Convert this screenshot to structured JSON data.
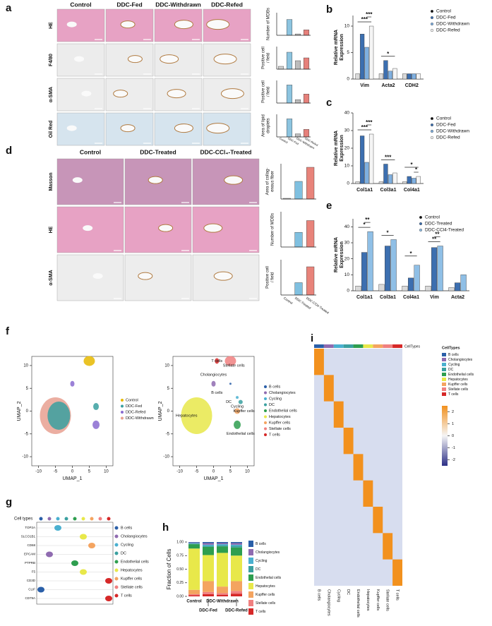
{
  "panel_a": {
    "letter": "a",
    "columns": [
      "Control",
      "DDC-Fed",
      "DDC-Withdrawn",
      "DDC-Refed"
    ],
    "rows": [
      "HE",
      "F4/80",
      "α-SMA",
      "Oil Red"
    ],
    "bar_colors": [
      "#cfcfcf",
      "#8cc4e0",
      "#bcbcbc",
      "#e6807a"
    ],
    "charts": [
      {
        "y_label": [
          "Number of MDBs"
        ],
        "values": [
          0,
          3.5,
          0.3,
          1.2
        ],
        "ylim": [
          0,
          5
        ]
      },
      {
        "y_label": [
          "Positive cell",
          "/ field"
        ],
        "values": [
          1,
          6,
          3,
          4
        ],
        "ylim": [
          0,
          8
        ]
      },
      {
        "y_label": [
          "Positive cell",
          "/ field"
        ],
        "values": [
          0,
          8,
          1.5,
          4
        ],
        "ylim": [
          0,
          10
        ]
      },
      {
        "y_label": [
          "Area of lipid",
          "droplets"
        ],
        "values": [
          0,
          12,
          2,
          5
        ],
        "ylim": [
          0,
          15
        ]
      }
    ]
  },
  "panel_b": {
    "letter": "b",
    "y_label": [
      "Relative mRNA",
      "Expression"
    ],
    "categories": [
      "Vim",
      "Acta2",
      "CDH2"
    ],
    "series": [
      {
        "name": "Control",
        "color": "#d9d9d9",
        "values": [
          1,
          1,
          1
        ]
      },
      {
        "name": "DDC-Fed",
        "color": "#3c6fb0",
        "values": [
          8.5,
          3.5,
          1
        ]
      },
      {
        "name": "DDC-Withdrawn",
        "color": "#7fb0e0",
        "values": [
          6,
          1.5,
          1
        ]
      },
      {
        "name": "DDC-Refed",
        "color": "#f5f5f5",
        "values": [
          10,
          2,
          1
        ]
      }
    ],
    "ylim": [
      0,
      12
    ],
    "yticks": [
      0,
      5,
      10
    ],
    "annotations": [
      {
        "category": 0,
        "series": 0,
        "text": "***"
      },
      {
        "category": 0,
        "series": 2,
        "text": "***"
      },
      {
        "category": 1,
        "series": 0,
        "text": "*"
      }
    ]
  },
  "panel_c": {
    "letter": "c",
    "y_label": [
      "Relative mRNA",
      "Expression"
    ],
    "categories": [
      "Col1a1",
      "Col3a1",
      "Col4a1"
    ],
    "series": [
      {
        "name": "Control",
        "color": "#d9d9d9",
        "values": [
          1,
          1,
          1
        ]
      },
      {
        "name": "DDC-Fed",
        "color": "#3c6fb0",
        "values": [
          27,
          11,
          4
        ]
      },
      {
        "name": "DDC-Withdrawn",
        "color": "#7fb0e0",
        "values": [
          12,
          5,
          3
        ]
      },
      {
        "name": "DDC-Refed",
        "color": "#f5f5f5",
        "values": [
          28,
          6,
          4
        ]
      }
    ],
    "ylim": [
      0,
      40
    ],
    "yticks": [
      0,
      10,
      20,
      30,
      40
    ],
    "annotations": [
      {
        "category": 0,
        "series": 0,
        "text": "***"
      },
      {
        "category": 0,
        "series": 2,
        "text": "***"
      },
      {
        "category": 1,
        "series": 0,
        "text": "***"
      },
      {
        "category": 2,
        "series": 0,
        "text": "*"
      },
      {
        "category": 2,
        "series": 2,
        "text": "*"
      }
    ]
  },
  "panel_d": {
    "letter": "d",
    "columns": [
      "Control",
      "DDC-Treated",
      "DDC-CCl₄-Treated"
    ],
    "rows": [
      "Masson",
      "HE",
      "α-SMA"
    ],
    "chart_categories": [
      "Control",
      "DDC-Treated",
      "DDC-CCl4-Treated"
    ],
    "bar_colors": [
      "#d0d0d0",
      "#7fc0e0",
      "#e8837a"
    ],
    "charts": [
      {
        "y_label": [
          "Area of collag-",
          "enous fiber"
        ],
        "values": [
          1,
          25,
          45
        ],
        "ylim": [
          0,
          50
        ]
      },
      {
        "y_label": [
          "Number of MDBs"
        ],
        "values": [
          0,
          5,
          9
        ],
        "ylim": [
          0,
          12
        ]
      },
      {
        "y_label": [
          "Positive cell",
          "/ field"
        ],
        "values": [
          0,
          7,
          16
        ],
        "ylim": [
          0,
          20
        ]
      }
    ]
  },
  "panel_e": {
    "letter": "e",
    "y_label": [
      "Relative mRNA",
      "Expression"
    ],
    "categories": [
      "Col1a1",
      "Col3a1",
      "Col4a1",
      "Vim",
      "Acta2"
    ],
    "series": [
      {
        "name": "Control",
        "color": "#d9d9d9",
        "values": [
          3,
          4,
          3,
          3,
          2
        ]
      },
      {
        "name": "DDC-Treated",
        "color": "#3c6fb0",
        "values": [
          24,
          28,
          8,
          27,
          5
        ]
      },
      {
        "name": "DDC-CCl4-Treated",
        "color": "#8fbfe6",
        "values": [
          37,
          32,
          16,
          28,
          10
        ]
      }
    ],
    "ylim": [
      0,
      45
    ],
    "yticks": [
      0,
      10,
      20,
      30,
      40
    ],
    "annotations": [
      {
        "category": 0,
        "series": 0,
        "text": "*"
      },
      {
        "category": 0,
        "series": 1,
        "text": "**"
      },
      {
        "category": 1,
        "series": 0,
        "text": "*"
      },
      {
        "category": 2,
        "series": 0,
        "text": "*"
      },
      {
        "category": 3,
        "series": 0,
        "text": "**"
      },
      {
        "category": 3,
        "series": 1,
        "text": "**"
      }
    ]
  },
  "panel_f": {
    "letter": "f",
    "x_label": "UMAP_1",
    "y_label": "UMAP_2",
    "ticks": [
      -10,
      -5,
      0,
      5,
      10
    ],
    "legend_left": [
      {
        "name": "Control",
        "color": "#e6b800"
      },
      {
        "name": "DDC-Fed",
        "color": "#3aa0a0"
      },
      {
        "name": "DDC-Refed",
        "color": "#8a6bd0"
      },
      {
        "name": "DDC-Withdrawn",
        "color": "#e8a090"
      }
    ],
    "legend_right": [
      {
        "name": "B cells",
        "color": "#2a5fa8"
      },
      {
        "name": "Cholangiocytes",
        "color": "#8f6bb0"
      },
      {
        "name": "Cycling",
        "color": "#4ab0d0"
      },
      {
        "name": "DC",
        "color": "#3aa0a0"
      },
      {
        "name": "Endothelial cells",
        "color": "#2e9e4f"
      },
      {
        "name": "Hepatocytes",
        "color": "#e8e84a"
      },
      {
        "name": "Kupffer cells",
        "color": "#f4a460"
      },
      {
        "name": "Stellate cells",
        "color": "#f08080"
      },
      {
        "name": "T cells",
        "color": "#d62828"
      }
    ],
    "cluster_labels": [
      "Stellate cells",
      "Cholangiocytes",
      "B cells",
      "DC",
      "Cycling",
      "Hepatocytes",
      "Kupffer cells",
      "Endothelial cells",
      "T cells"
    ]
  },
  "panel_g": {
    "letter": "g",
    "header": "Cell types",
    "genes": [
      "TOP2A",
      "SLCO1B1",
      "CD68",
      "EPCAM",
      "PTPRB",
      "F5",
      "CD3D",
      "CLIF",
      "CD79A"
    ],
    "legend": [
      {
        "name": "B cells",
        "color": "#2a5fa8"
      },
      {
        "name": "Cholangiocytes",
        "color": "#8f6bb0"
      },
      {
        "name": "Cycling",
        "color": "#4ab0d0"
      },
      {
        "name": "DC",
        "color": "#3aa0a0"
      },
      {
        "name": "Endothelial cells",
        "color": "#2e9e4f"
      },
      {
        "name": "Hepatocytes",
        "color": "#e8e84a"
      },
      {
        "name": "Kupffer cells",
        "color": "#f4a460"
      },
      {
        "name": "Stellate cells",
        "color": "#f08080"
      },
      {
        "name": "T cells",
        "color": "#d62828"
      }
    ]
  },
  "panel_h": {
    "letter": "h",
    "y_label": "Fraction of Cells",
    "categories": [
      "Control",
      "DDC-Fed",
      "DDC-Withdrawn",
      "DDC-Refed"
    ],
    "ylim": [
      0,
      1
    ],
    "yticks": [
      {
        "value": 0,
        "label": "0.00"
      },
      {
        "value": 0.25,
        "label": "0.25"
      },
      {
        "value": 0.5,
        "label": "0.50"
      },
      {
        "value": 0.75,
        "label": "0.75"
      },
      {
        "value": 1,
        "label": "1.00"
      }
    ],
    "series": [
      {
        "name": "B cells",
        "color": "#2a5fa8",
        "values": [
          0.01,
          0.02,
          0.02,
          0.02
        ]
      },
      {
        "name": "Cholangiocytes",
        "color": "#8f6bb0",
        "values": [
          0.01,
          0.03,
          0.02,
          0.03
        ]
      },
      {
        "name": "Cycling",
        "color": "#4ab0d0",
        "values": [
          0.01,
          0.02,
          0.02,
          0.02
        ]
      },
      {
        "name": "DC",
        "color": "#3aa0a0",
        "values": [
          0.01,
          0.02,
          0.02,
          0.03
        ]
      },
      {
        "name": "Endothelial cells",
        "color": "#2e9e4f",
        "values": [
          0.08,
          0.15,
          0.12,
          0.15
        ]
      },
      {
        "name": "Hepatocytes",
        "color": "#e8e84a",
        "values": [
          0.76,
          0.48,
          0.62,
          0.47
        ]
      },
      {
        "name": "Kupffer cells",
        "color": "#f4a460",
        "values": [
          0.08,
          0.2,
          0.12,
          0.18
        ]
      },
      {
        "name": "Stellate cells",
        "color": "#f08080",
        "values": [
          0.02,
          0.04,
          0.03,
          0.05
        ]
      },
      {
        "name": "T cells",
        "color": "#d62828",
        "values": [
          0.02,
          0.04,
          0.03,
          0.05
        ]
      }
    ]
  },
  "panel_i": {
    "letter": "i",
    "column_title": "CellTypes",
    "legend_title": "CellTypes",
    "columns": [
      {
        "name": "B cells",
        "color": "#2a5fa8"
      },
      {
        "name": "Cholangiocytes",
        "color": "#8f6bb0"
      },
      {
        "name": "Cycling",
        "color": "#4ab0d0"
      },
      {
        "name": "DC",
        "color": "#3aa0a0"
      },
      {
        "name": "Endothelial cells",
        "color": "#2e9e4f"
      },
      {
        "name": "Hepatocytes",
        "color": "#e8e84a"
      },
      {
        "name": "Kupffer cells",
        "color": "#f4a460"
      },
      {
        "name": "Stellate cells",
        "color": "#f08080"
      },
      {
        "name": "T cells",
        "color": "#d62828"
      }
    ],
    "colorbar_ticks": [
      2,
      1,
      0,
      -1,
      -2
    ],
    "colorbar_lim": [
      -2.5,
      2.5
    ]
  }
}
